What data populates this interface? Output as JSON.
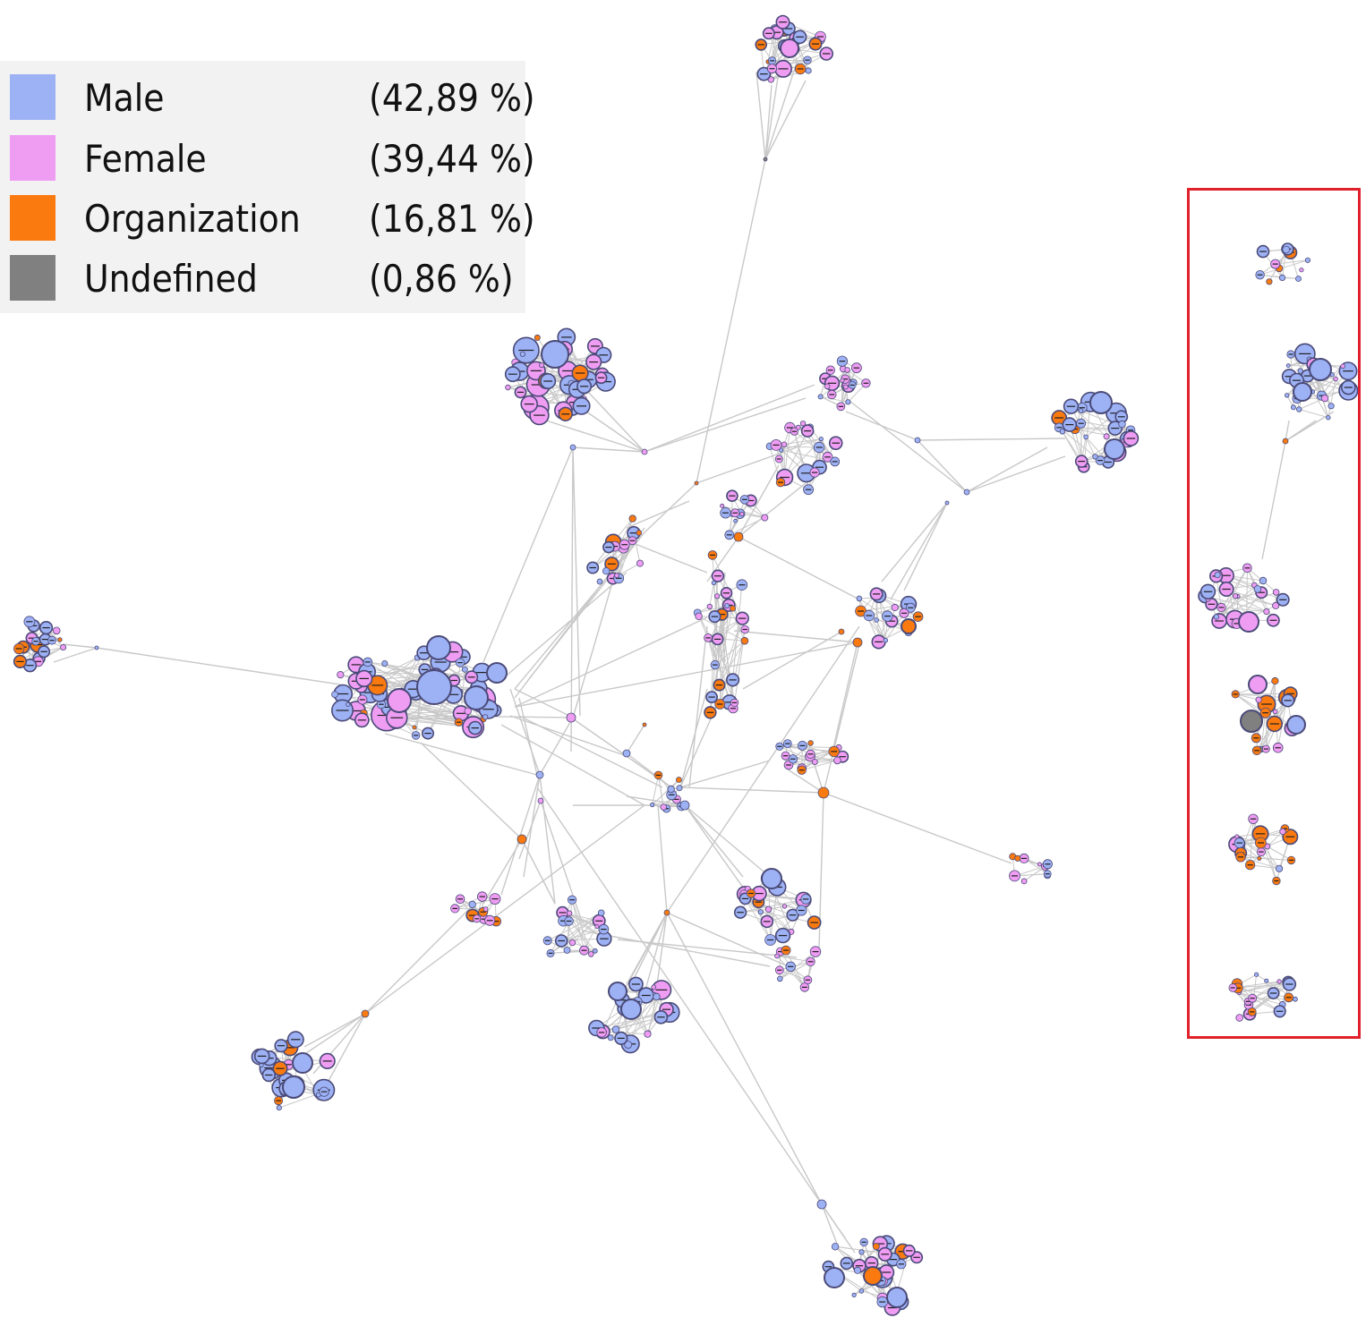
{
  "legend": {
    "items": [
      {
        "label": "Male",
        "percent": "(42,89 %)",
        "color": "#9db1f5"
      },
      {
        "label": "Female",
        "percent": "(39,44 %)",
        "color": "#ef9cf3"
      },
      {
        "label": "Organization",
        "percent": "(16,81 %)",
        "color": "#fb7a10"
      },
      {
        "label": "Undefined",
        "percent": "(0,86 %)",
        "color": "#808080"
      }
    ]
  },
  "colors": {
    "edge": "#c8c8c8",
    "node_stroke": "#4a4a78",
    "highlight": "#e0202a"
  }
}
